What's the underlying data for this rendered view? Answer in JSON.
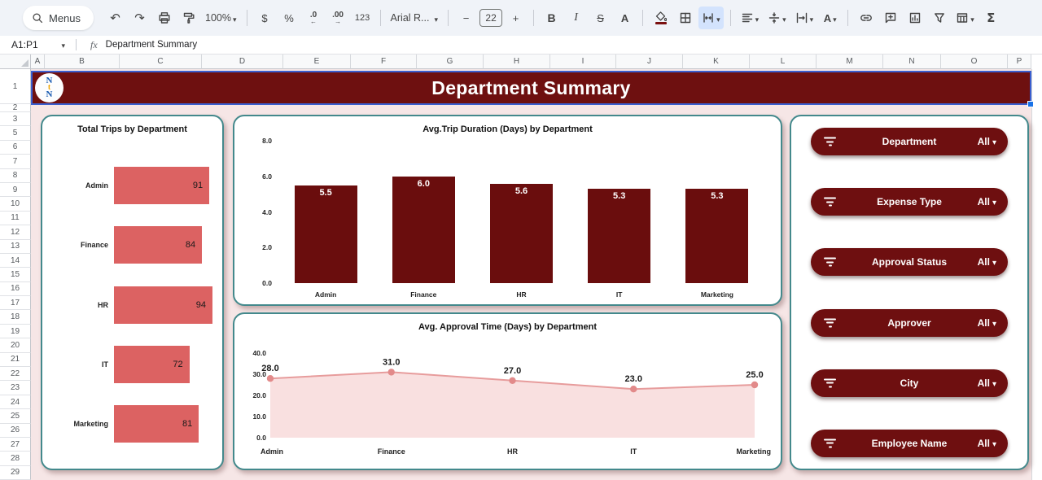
{
  "toolbar": {
    "menus": "Menus",
    "undo": "↶",
    "redo": "↷",
    "zoom": "100%",
    "currency": "$",
    "percent": "%",
    "decrease_decimal": ".0",
    "decrease_arrow": "←",
    "increase_decimal": ".00",
    "increase_arrow": "→",
    "number_format": "123",
    "font_name": "Arial R...",
    "minus": "−",
    "font_size": "22",
    "plus": "+",
    "bold": "B",
    "italic": "I",
    "strikethrough": "S",
    "text_color": "A",
    "text_rotation": "A",
    "sigma": "Σ"
  },
  "formula_bar": {
    "name_box": "A1:P1",
    "fx": "fx",
    "value": "Department Summary"
  },
  "grid": {
    "column_labels": [
      "A",
      "B",
      "C",
      "D",
      "E",
      "F",
      "G",
      "H",
      "I",
      "J",
      "K",
      "L",
      "M",
      "N",
      "O",
      "P"
    ],
    "row_labels": [
      "1",
      "2",
      "3",
      "5",
      "6",
      "7",
      "8",
      "9",
      "10",
      "11",
      "12",
      "13",
      "14",
      "15",
      "16",
      "17",
      "18",
      "19",
      "20",
      "21",
      "22",
      "23",
      "24",
      "25",
      "26",
      "27",
      "28",
      "29"
    ]
  },
  "banner": {
    "title": "Department Summary",
    "logo_letters": [
      "N",
      "t",
      "N"
    ]
  },
  "filters": {
    "items": [
      {
        "label": "Department",
        "value": "All"
      },
      {
        "label": "Expense Type",
        "value": "All"
      },
      {
        "label": "Approval Status",
        "value": "All"
      },
      {
        "label": "Approver",
        "value": "All"
      },
      {
        "label": "City",
        "value": "All"
      },
      {
        "label": "Employee Name",
        "value": "All"
      }
    ]
  },
  "chart_data": [
    {
      "id": "total_trips",
      "type": "bar",
      "orientation": "horizontal",
      "title": "Total Trips by Department",
      "categories": [
        "Admin",
        "Finance",
        "HR",
        "IT",
        "Marketing"
      ],
      "values": [
        91,
        84,
        94,
        72,
        81
      ],
      "value_labels": [
        "91",
        "84",
        "94",
        "72",
        "81"
      ],
      "bar_color": "#dc6262",
      "xlim": [
        0,
        94
      ],
      "legend": "none",
      "grid": "off"
    },
    {
      "id": "trip_duration",
      "type": "bar",
      "orientation": "vertical",
      "title": "Avg.Trip Duration (Days) by Department",
      "categories": [
        "Admin",
        "Finance",
        "HR",
        "IT",
        "Marketing"
      ],
      "values": [
        5.5,
        6.0,
        5.6,
        5.3,
        5.3
      ],
      "value_labels": [
        "5.5",
        "6.0",
        "5.6",
        "5.3",
        "5.3"
      ],
      "bar_color": "#6a0d0d",
      "ylim": [
        0,
        8
      ],
      "yticks": [
        "8.0",
        "6.0",
        "4.0",
        "2.0",
        "0.0"
      ],
      "legend": "none",
      "grid": "off"
    },
    {
      "id": "approval_time",
      "type": "area",
      "title": "Avg. Approval Time (Days) by Department",
      "categories": [
        "Admin",
        "Finance",
        "HR",
        "IT",
        "Marketing"
      ],
      "values": [
        28.0,
        31.0,
        27.0,
        23.0,
        25.0
      ],
      "value_labels": [
        "28.0",
        "31.0",
        "27.0",
        "23.0",
        "25.0"
      ],
      "line_color": "#e79c9c",
      "fill_color": "#f9e0e0",
      "marker_color": "#e28a8a",
      "ylim": [
        0,
        40
      ],
      "yticks": [
        "40.0",
        "30.0",
        "20.0",
        "10.0",
        "0.0"
      ],
      "legend": "none",
      "grid": "off"
    }
  ],
  "colors": {
    "banner_bg": "#6e1010",
    "chart_maroon": "#6a0d0d",
    "salmon": "#dc6262",
    "card_border": "#43898c",
    "sheet_bg": "#f6e6e6",
    "slicer_bg": "#6e0f10",
    "selection_blue": "#1a73e8"
  }
}
